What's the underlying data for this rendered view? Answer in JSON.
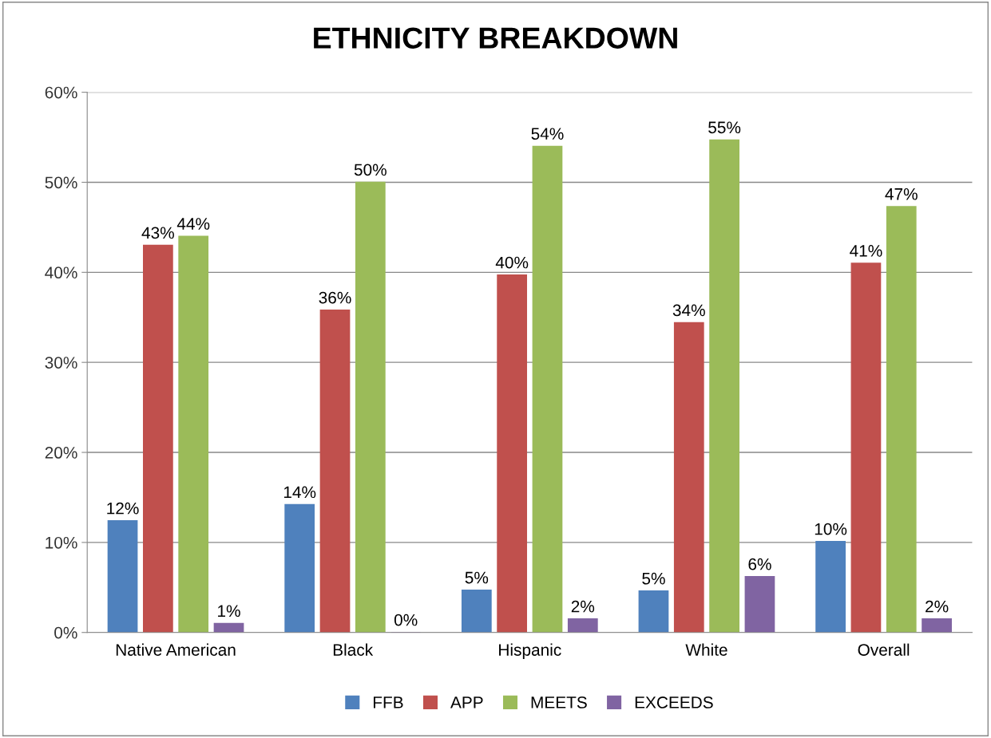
{
  "chart_data": {
    "type": "bar",
    "title": "ETHNICITY BREAKDOWN",
    "categories": [
      "Native American",
      "Black",
      "Hispanic",
      "White",
      "Overall"
    ],
    "series": [
      {
        "name": "FFB",
        "color": "#4f81bd",
        "values": [
          12.4,
          14.2,
          4.7,
          4.6,
          10.1
        ],
        "value_labels": [
          "12%",
          "14%",
          "5%",
          "5%",
          "10%"
        ]
      },
      {
        "name": "APP",
        "color": "#c0504d",
        "values": [
          43.0,
          35.8,
          39.7,
          34.4,
          41.0
        ],
        "value_labels": [
          "43%",
          "36%",
          "40%",
          "34%",
          "41%"
        ]
      },
      {
        "name": "MEETS",
        "color": "#9bbb59",
        "values": [
          44.0,
          50.0,
          54.0,
          54.7,
          47.3
        ],
        "value_labels": [
          "44%",
          "50%",
          "54%",
          "55%",
          "47%"
        ]
      },
      {
        "name": "EXCEEDS",
        "color": "#8064a2",
        "values": [
          1.0,
          0.0,
          1.5,
          6.2,
          1.5
        ],
        "value_labels": [
          "1%",
          "0%",
          "2%",
          "6%",
          "2%"
        ]
      }
    ],
    "ylim": [
      0,
      60
    ],
    "yticks": [
      {
        "value": 0,
        "label": "0%"
      },
      {
        "value": 10,
        "label": "10%"
      },
      {
        "value": 20,
        "label": "20%"
      },
      {
        "value": 30,
        "label": "30%"
      },
      {
        "value": 40,
        "label": "40%"
      },
      {
        "value": 50,
        "label": "50%"
      },
      {
        "value": 60,
        "label": "60%"
      }
    ],
    "grid": "y",
    "legend": "bottom"
  }
}
